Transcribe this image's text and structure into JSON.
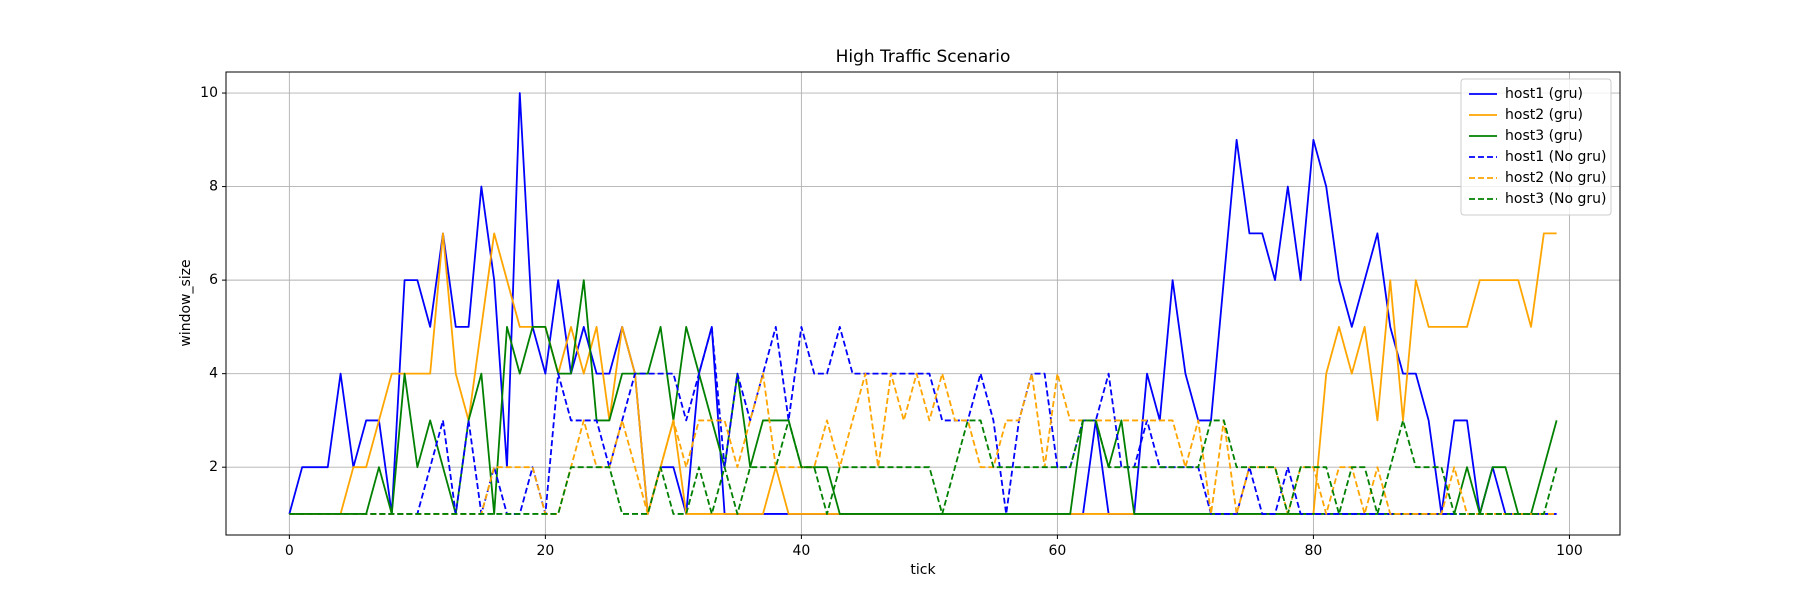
{
  "chart_data": {
    "type": "line",
    "title": "High Traffic Scenario",
    "xlabel": "tick",
    "ylabel": "window_size",
    "x": [
      0,
      1,
      2,
      3,
      4,
      5,
      6,
      7,
      8,
      9,
      10,
      11,
      12,
      13,
      14,
      15,
      16,
      17,
      18,
      19,
      20,
      21,
      22,
      23,
      24,
      25,
      26,
      27,
      28,
      29,
      30,
      31,
      32,
      33,
      34,
      35,
      36,
      37,
      38,
      39,
      40,
      41,
      42,
      43,
      44,
      45,
      46,
      47,
      48,
      49,
      50,
      51,
      52,
      53,
      54,
      55,
      56,
      57,
      58,
      59,
      60,
      61,
      62,
      63,
      64,
      65,
      66,
      67,
      68,
      69,
      70,
      71,
      72,
      73,
      74,
      75,
      76,
      77,
      78,
      79,
      80,
      81,
      82,
      83,
      84,
      85,
      86,
      87,
      88,
      89,
      90,
      91,
      92,
      93,
      94,
      95,
      96,
      97,
      98,
      99
    ],
    "series": [
      {
        "name": "host1 (gru)",
        "color": "#0000ff",
        "style": "solid",
        "values": [
          1,
          2,
          2,
          2,
          4,
          2,
          3,
          3,
          1,
          6,
          6,
          5,
          7,
          5,
          5,
          8,
          6,
          2,
          10,
          5,
          4,
          6,
          4,
          5,
          4,
          4,
          5,
          4,
          1,
          2,
          2,
          1,
          4,
          5,
          1,
          1,
          1,
          1,
          1,
          1,
          1,
          1,
          1,
          1,
          1,
          1,
          1,
          1,
          1,
          1,
          1,
          1,
          1,
          1,
          1,
          1,
          1,
          1,
          1,
          1,
          1,
          1,
          1,
          3,
          1,
          1,
          1,
          4,
          3,
          6,
          4,
          3,
          3,
          6,
          9,
          7,
          7,
          6,
          8,
          6,
          9,
          8,
          6,
          5,
          6,
          7,
          5,
          4,
          4,
          3,
          1,
          3,
          3,
          1,
          2,
          1,
          1,
          1,
          1,
          1
        ]
      },
      {
        "name": "host2 (gru)",
        "color": "#ffa500",
        "style": "solid",
        "values": [
          1,
          1,
          1,
          1,
          1,
          2,
          2,
          3,
          4,
          4,
          4,
          4,
          7,
          4,
          3,
          5,
          7,
          6,
          5,
          5,
          5,
          4,
          5,
          4,
          5,
          3,
          5,
          4,
          1,
          2,
          3,
          1,
          1,
          1,
          1,
          1,
          1,
          1,
          2,
          1,
          1,
          1,
          1,
          1,
          1,
          1,
          1,
          1,
          1,
          1,
          1,
          1,
          1,
          1,
          1,
          1,
          1,
          1,
          1,
          1,
          1,
          1,
          1,
          1,
          1,
          1,
          1,
          1,
          1,
          1,
          1,
          1,
          1,
          1,
          1,
          1,
          1,
          1,
          1,
          1,
          1,
          4,
          5,
          4,
          5,
          3,
          6,
          3,
          6,
          5,
          5,
          5,
          5,
          6,
          6,
          6,
          6,
          5,
          7,
          7
        ]
      },
      {
        "name": "host3 (gru)",
        "color": "#008000",
        "style": "solid",
        "values": [
          1,
          1,
          1,
          1,
          1,
          1,
          1,
          2,
          1,
          4,
          2,
          3,
          2,
          1,
          3,
          4,
          1,
          5,
          4,
          5,
          5,
          4,
          4,
          6,
          3,
          3,
          4,
          4,
          4,
          5,
          3,
          5,
          4,
          3,
          2,
          4,
          2,
          3,
          3,
          3,
          2,
          2,
          2,
          1,
          1,
          1,
          1,
          1,
          1,
          1,
          1,
          1,
          1,
          1,
          1,
          1,
          1,
          1,
          1,
          1,
          1,
          1,
          3,
          3,
          2,
          3,
          1,
          1,
          1,
          1,
          1,
          1,
          1,
          1,
          1,
          1,
          1,
          1,
          1,
          1,
          1,
          1,
          1,
          1,
          1,
          1,
          1,
          1,
          1,
          1,
          1,
          1,
          2,
          1,
          2,
          2,
          1,
          1,
          2,
          3
        ]
      },
      {
        "name": "host1 (No gru)",
        "color": "#0000ff",
        "style": "dashed",
        "values": [
          1,
          1,
          1,
          1,
          1,
          1,
          1,
          1,
          1,
          1,
          1,
          2,
          3,
          1,
          3,
          1,
          2,
          1,
          1,
          2,
          1,
          4,
          3,
          3,
          3,
          2,
          3,
          4,
          4,
          4,
          4,
          3,
          4,
          5,
          2,
          4,
          3,
          4,
          5,
          3,
          5,
          4,
          4,
          5,
          4,
          4,
          4,
          4,
          4,
          4,
          4,
          3,
          3,
          3,
          4,
          3,
          1,
          3,
          4,
          4,
          2,
          2,
          3,
          3,
          4,
          2,
          2,
          3,
          2,
          2,
          2,
          2,
          1,
          1,
          1,
          2,
          1,
          1,
          2,
          1,
          1,
          1,
          1,
          1,
          1,
          1,
          1,
          1,
          1,
          1,
          1,
          1,
          1,
          1,
          1,
          1,
          1,
          1,
          1,
          1
        ]
      },
      {
        "name": "host2 (No gru)",
        "color": "#ffa500",
        "style": "dashed",
        "values": [
          1,
          1,
          1,
          1,
          1,
          1,
          1,
          1,
          1,
          1,
          1,
          1,
          1,
          1,
          1,
          1,
          2,
          2,
          2,
          2,
          1,
          1,
          2,
          3,
          2,
          2,
          3,
          2,
          1,
          2,
          3,
          2,
          3,
          3,
          3,
          2,
          3,
          4,
          2,
          2,
          2,
          2,
          3,
          2,
          3,
          4,
          2,
          4,
          3,
          4,
          3,
          4,
          3,
          3,
          2,
          2,
          3,
          3,
          4,
          2,
          4,
          3,
          3,
          3,
          3,
          3,
          3,
          3,
          3,
          3,
          2,
          3,
          1,
          3,
          1,
          2,
          2,
          2,
          1,
          2,
          2,
          1,
          2,
          2,
          1,
          2,
          1,
          1,
          1,
          1,
          1,
          2,
          1,
          1,
          1,
          1,
          1,
          1,
          1,
          1
        ]
      },
      {
        "name": "host3 (No gru)",
        "color": "#008000",
        "style": "dashed",
        "values": [
          1,
          1,
          1,
          1,
          1,
          1,
          1,
          1,
          1,
          1,
          1,
          1,
          1,
          1,
          1,
          1,
          1,
          1,
          1,
          1,
          1,
          1,
          2,
          2,
          2,
          2,
          1,
          1,
          1,
          2,
          1,
          1,
          2,
          1,
          2,
          1,
          2,
          2,
          2,
          3,
          2,
          2,
          1,
          2,
          2,
          2,
          2,
          2,
          2,
          2,
          2,
          1,
          2,
          3,
          3,
          2,
          2,
          2,
          2,
          2,
          2,
          2,
          3,
          3,
          2,
          2,
          2,
          2,
          2,
          2,
          2,
          2,
          3,
          3,
          2,
          2,
          2,
          2,
          1,
          2,
          2,
          2,
          1,
          2,
          2,
          1,
          2,
          3,
          2,
          2,
          2,
          1,
          1,
          1,
          1,
          1,
          1,
          1,
          1,
          2
        ]
      }
    ],
    "xlim": [
      -4.95,
      103.95
    ],
    "ylim": [
      0.55,
      10.45
    ],
    "xticks": [
      0,
      20,
      40,
      60,
      80,
      100
    ],
    "yticks": [
      2,
      4,
      6,
      8,
      10
    ],
    "grid": true,
    "legend": "upper right"
  }
}
